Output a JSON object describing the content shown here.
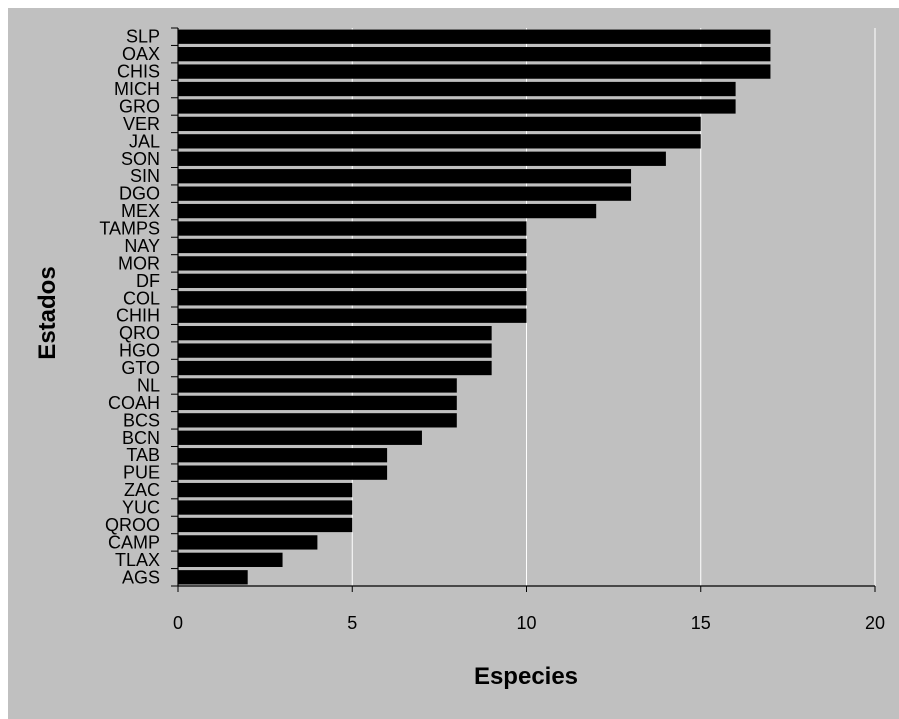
{
  "chart_data": {
    "type": "bar",
    "orientation": "horizontal",
    "xlabel": "Especies",
    "ylabel": "Estados",
    "xlim": [
      0,
      20
    ],
    "xticks": [
      0,
      5,
      10,
      15,
      20
    ],
    "grid": "vertical",
    "legend": "none",
    "colors": {
      "outer_background": "#c0c0c0",
      "plot_background": "#c0c0c0",
      "bar_fill": "#000000",
      "grid_line": "#ffffff",
      "axis_line": "#000000"
    },
    "categories": [
      "SLP",
      "OAX",
      "CHIS",
      "MICH",
      "GRO",
      "VER",
      "JAL",
      "SON",
      "SIN",
      "DGO",
      "MEX",
      "TAMPS",
      "NAY",
      "MOR",
      "DF",
      "COL",
      "CHIH",
      "QRO",
      "HGO",
      "GTO",
      "NL",
      "COAH",
      "BCS",
      "BCN",
      "TAB",
      "PUE",
      "ZAC",
      "YUC",
      "QROO",
      "CAMP",
      "TLAX",
      "AGS"
    ],
    "values": [
      17,
      17,
      17,
      16,
      16,
      15,
      15,
      14,
      13,
      13,
      12,
      10,
      10,
      10,
      10,
      10,
      10,
      9,
      9,
      9,
      8,
      8,
      8,
      7,
      6,
      6,
      5,
      5,
      5,
      4,
      3,
      2
    ]
  }
}
